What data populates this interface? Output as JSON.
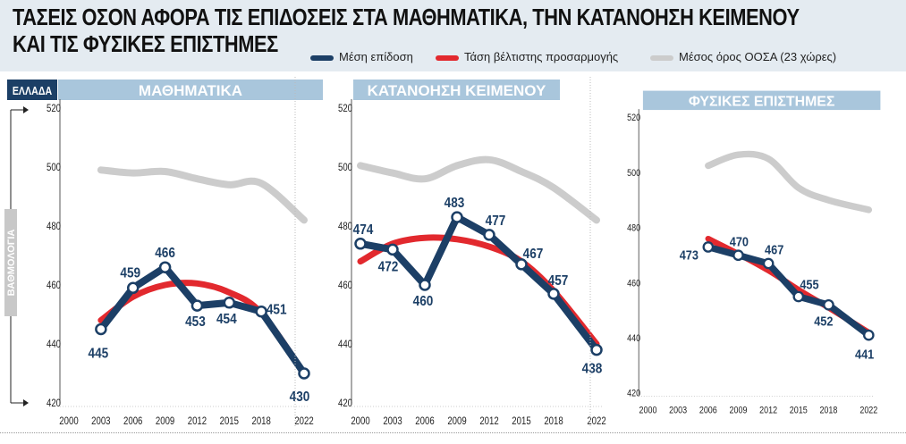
{
  "title_line1": "ΤΑΣΕΙΣ ΟΣΟΝ ΑΦΟΡΑ ΤΙΣ ΕΠΙΔΟΣΕΙΣ ΣΤΑ ΜΑΘΗΜΑΤΙΚΑ, ΤΗΝ ΚΑΤΑΝΟΗΣΗ ΚΕΙΜΕΝΟΥ",
  "title_line2": "ΚΑΙ ΤΙΣ ΦΥΣΙΚΕΣ ΕΠΙΣΤΗΜΕΣ",
  "country_tag": "ΕΛΛΑΔΑ",
  "legend": [
    {
      "label": "Μέση επίδοση",
      "color": "#1c3f66"
    },
    {
      "label": "Τάση βέλτιστης προσαρμογής",
      "color": "#e2292e"
    },
    {
      "label": "Μέσος όρος ΟΟΣΑ (23 χώρες)",
      "color": "#cccccc"
    }
  ],
  "colors": {
    "score": "#1c3f66",
    "trend": "#e2292e",
    "oecd": "#cccccc",
    "panel_header": "#a9c6dc",
    "tag": "#1c3f66"
  },
  "chart_data": [
    {
      "type": "line",
      "title": "ΜΑΘΗΜΑΤΙΚΑ",
      "ylabel": "ΒΑΘΜΟΛΟΓΙΑ",
      "xlim": [
        2000,
        2022
      ],
      "ylim": [
        420,
        520
      ],
      "x_ticks": [
        "2000",
        "2003",
        "2006",
        "2009",
        "2012",
        "2015",
        "2018",
        "2022"
      ],
      "y_ticks": [
        "420",
        "440",
        "460",
        "480",
        "500",
        "520"
      ],
      "series": [
        {
          "name": "Μέση επίδοση",
          "x": [
            2003,
            2006,
            2009,
            2012,
            2015,
            2018,
            2022
          ],
          "values": [
            445,
            459,
            466,
            453,
            454,
            451,
            430
          ],
          "labels": [
            "445",
            "459",
            "466",
            "453",
            "454",
            "451",
            "430"
          ]
        },
        {
          "name": "Τάση βέλτιστης προσαρμογής",
          "x": [
            2003,
            2006,
            2009,
            2012,
            2015,
            2018,
            2022
          ],
          "values": [
            448,
            456,
            460,
            460.5,
            457.5,
            450.5,
            430
          ]
        },
        {
          "name": "Μέσος όρος ΟΟΣΑ (23 χώρες)",
          "x": [
            2003,
            2006,
            2009,
            2012,
            2015,
            2018,
            2022
          ],
          "values": [
            499,
            498,
            498.5,
            496,
            494,
            494.5,
            482
          ]
        }
      ]
    },
    {
      "type": "line",
      "title": "ΚΑΤΑΝΟΗΣΗ ΚΕΙΜΕΝΟΥ",
      "ylabel": "",
      "xlim": [
        2000,
        2022
      ],
      "ylim": [
        420,
        520
      ],
      "x_ticks": [
        "2000",
        "2003",
        "2006",
        "2009",
        "2012",
        "2015",
        "2018",
        "2022"
      ],
      "y_ticks": [
        "420",
        "440",
        "460",
        "480",
        "500",
        "520"
      ],
      "series": [
        {
          "name": "Μέση επίδοση",
          "x": [
            2000,
            2003,
            2006,
            2009,
            2012,
            2015,
            2018,
            2022
          ],
          "values": [
            474,
            472,
            460,
            483,
            477,
            467,
            457,
            438
          ],
          "labels": [
            "474",
            "472",
            "460",
            "483",
            "477",
            "467",
            "457",
            "438"
          ]
        },
        {
          "name": "Τάση βέλτιστης προσαρμογής",
          "x": [
            2000,
            2003,
            2006,
            2009,
            2012,
            2015,
            2018,
            2022
          ],
          "values": [
            468,
            474,
            476,
            475.5,
            473,
            468,
            458,
            440
          ]
        },
        {
          "name": "Μέσος όρος ΟΟΣΑ (23 χώρες)",
          "x": [
            2000,
            2003,
            2006,
            2009,
            2012,
            2015,
            2018,
            2022
          ],
          "values": [
            500.5,
            498,
            496,
            500.5,
            502.5,
            498.5,
            493,
            482
          ]
        }
      ]
    },
    {
      "type": "line",
      "title": "ΦΥΣΙΚΕΣ ΕΠΙΣΤΗΜΕΣ",
      "ylabel": "",
      "xlim": [
        2000,
        2022
      ],
      "ylim": [
        420,
        520
      ],
      "x_ticks": [
        "2000",
        "2003",
        "2006",
        "2009",
        "2012",
        "2015",
        "2018",
        "2022"
      ],
      "y_ticks": [
        "420",
        "440",
        "460",
        "480",
        "500",
        "520"
      ],
      "series": [
        {
          "name": "Μέση επίδοση",
          "x": [
            2006,
            2009,
            2012,
            2015,
            2018,
            2022
          ],
          "values": [
            473,
            470,
            467,
            455,
            452,
            441
          ],
          "labels": [
            "473",
            "470",
            "467",
            "455",
            "452",
            "441"
          ]
        },
        {
          "name": "Τάση βέλτιστης προσαρμογής",
          "x": [
            2006,
            2009,
            2012,
            2015,
            2018,
            2022
          ],
          "values": [
            476,
            470.5,
            464.5,
            457.5,
            451,
            442
          ]
        },
        {
          "name": "Μέσος όρος ΟΟΣΑ (23 χώρες)",
          "x": [
            2006,
            2009,
            2012,
            2015,
            2018,
            2022
          ],
          "values": [
            502.5,
            506.5,
            505,
            494.5,
            490,
            486.5
          ]
        }
      ]
    }
  ]
}
